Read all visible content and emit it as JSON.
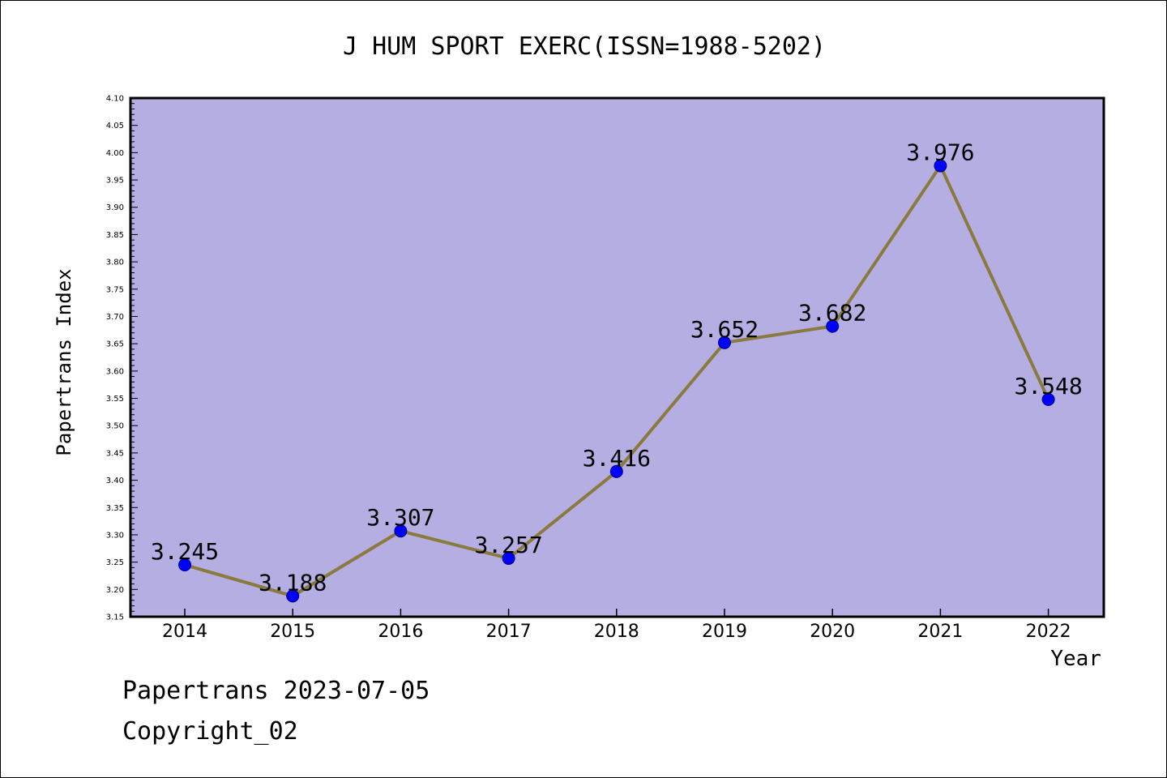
{
  "colors": {
    "plot_background": "#b4aee2",
    "line": "#8b7a3e",
    "marker": "#0000ff",
    "marker_edge": "#000080",
    "axis": "#000000",
    "page_background": "#ffffff"
  },
  "footer": {
    "date_line": "Papertrans 2023-07-05",
    "copyright_line": "Copyright_02"
  },
  "chart_data": {
    "type": "line",
    "title": "J HUM SPORT EXERC(ISSN=1988-5202)",
    "xlabel": "Year",
    "ylabel": "Papertrans Index",
    "categories": [
      "2014",
      "2015",
      "2016",
      "2017",
      "2018",
      "2019",
      "2020",
      "2021",
      "2022"
    ],
    "series": [
      {
        "values": [
          3.245,
          3.188,
          3.307,
          3.257,
          3.416,
          3.652,
          3.682,
          3.976,
          3.548
        ],
        "labels": [
          "3.245",
          "3.188",
          "3.307",
          "3.257",
          "3.416",
          "3.652",
          "3.682",
          "3.976",
          "3.548"
        ]
      }
    ],
    "ylim": [
      3.15,
      4.1
    ],
    "yticks": [
      "3.15",
      "3.20",
      "3.25",
      "3.30",
      "3.35",
      "3.40",
      "3.45",
      "3.50",
      "3.55",
      "3.60",
      "3.65",
      "3.70",
      "3.75",
      "3.80",
      "3.85",
      "3.90",
      "3.95",
      "4.00",
      "4.05",
      "4.10"
    ],
    "grid": false,
    "legend": "none"
  }
}
